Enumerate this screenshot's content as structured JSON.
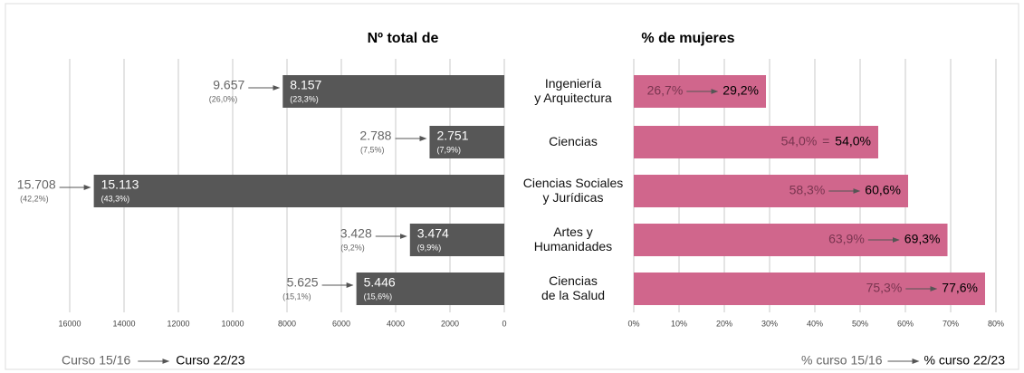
{
  "chart_data": [
    {
      "type": "bar",
      "orientation": "horizontal",
      "title": "Nº total de",
      "x_inverted": true,
      "categories": [
        "Ingeniería\ny Arquitectura",
        "Ciencias",
        "Ciencias Sociales\ny Jurídicas",
        "Artes y\nHumanidades",
        "Ciencias\nde la Salud"
      ],
      "series": [
        {
          "name": "Curso 15/16",
          "values": [
            9657,
            2788,
            15708,
            3428,
            5625
          ],
          "value_labels": [
            "9.657",
            "2.788",
            "15.708",
            "3.428",
            "5.625"
          ],
          "share_labels": [
            "(26,0%)",
            "(7,5%)",
            "(42,2%)",
            "(9,2%)",
            "(15,1%)"
          ]
        },
        {
          "name": "Curso 22/23",
          "color": "#575757",
          "values": [
            8157,
            2751,
            15113,
            3474,
            5446
          ],
          "value_labels": [
            "8.157",
            "2.751",
            "15.113",
            "3.474",
            "5.446"
          ],
          "share_labels": [
            "(23,3%)",
            "(7,9%)",
            "(43,3%)",
            "(9,9%)",
            "(15,6%)"
          ]
        }
      ],
      "xlim": [
        0,
        16000
      ],
      "xticks": [
        0,
        2000,
        4000,
        6000,
        8000,
        10000,
        12000,
        14000,
        16000
      ],
      "grid": true
    },
    {
      "type": "bar",
      "orientation": "horizontal",
      "title": "% de mujeres",
      "same_symbol": "=",
      "series": [
        {
          "name": "% curso 15/16",
          "values": [
            26.7,
            54.0,
            58.3,
            63.9,
            75.3
          ],
          "value_labels": [
            "26,7%",
            "54,0%",
            "58,3%",
            "63,9%",
            "75,3%"
          ]
        },
        {
          "name": "% curso 22/23",
          "color": "#d0668c",
          "values": [
            29.2,
            54.0,
            60.6,
            69.3,
            77.6
          ],
          "value_labels": [
            "29,2%",
            "54,0%",
            "60,6%",
            "69,3%",
            "77,6%"
          ]
        }
      ],
      "xlim": [
        0,
        80
      ],
      "xticks": [
        {
          "value": 0,
          "label": "0%"
        },
        {
          "value": 10,
          "label": "10%"
        },
        {
          "value": 20,
          "label": "20%"
        },
        {
          "value": 30,
          "label": "30%"
        },
        {
          "value": 40,
          "label": "40%"
        },
        {
          "value": 50,
          "label": "50%"
        },
        {
          "value": 60,
          "label": "60%"
        },
        {
          "value": 70,
          "label": "70%"
        },
        {
          "value": 80,
          "label": "80%"
        }
      ],
      "grid": true
    }
  ]
}
